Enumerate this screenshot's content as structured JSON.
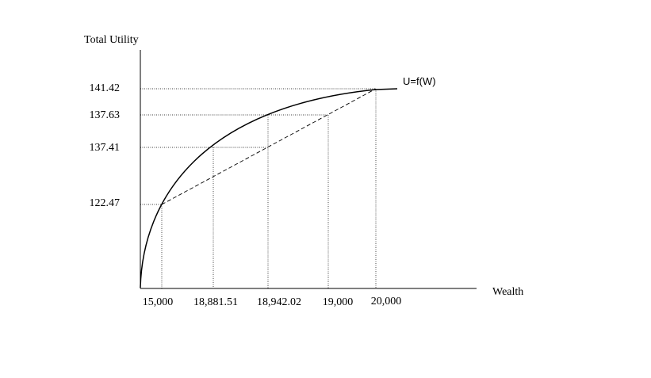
{
  "y_axis_label": "Total Utility",
  "x_axis_label": "Wealth",
  "curve_label": "U=f(W)",
  "y_ticks": [
    "141.42",
    "137.63",
    "137.41",
    "122.47"
  ],
  "x_ticks": [
    "15,000",
    "18,881.51",
    "18,942.02",
    "19,000",
    "20,000"
  ]
}
